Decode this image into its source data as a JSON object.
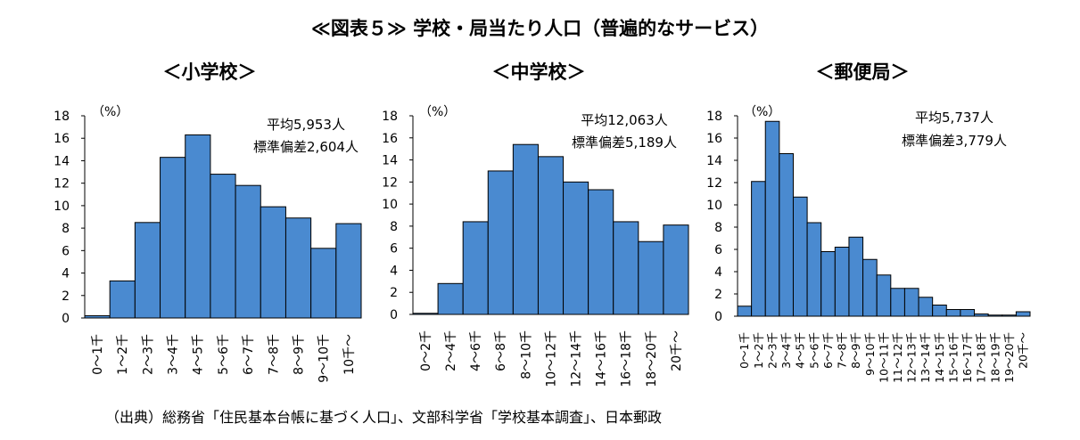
{
  "title": "≪図表５≫ 学校・局当たり人口（普遍的なサービス）",
  "source": "（出典）総務省「住民基本台帳に基づく人口」、文部科学省「学校基本調査」、日本郵政",
  "colors": {
    "bar": "#4a8ad0",
    "stroke": "#000000"
  },
  "chart_data": [
    {
      "type": "bar",
      "title": "＜小学校＞",
      "unit_label": "（%）",
      "annotations": [
        "平均5,953人",
        "標準偏差2,604人"
      ],
      "ylim": [
        0,
        18
      ],
      "yticks": [
        0,
        2,
        4,
        6,
        8,
        10,
        12,
        14,
        16,
        18
      ],
      "categories": [
        "0～1千",
        "1～2千",
        "2～3千",
        "3～4千",
        "4～5千",
        "5～6千",
        "6～7千",
        "7～8千",
        "8～9千",
        "9～10千",
        "10千～"
      ],
      "values": [
        0.2,
        3.3,
        8.5,
        14.3,
        16.3,
        12.8,
        11.8,
        9.9,
        8.9,
        6.2,
        8.4
      ]
    },
    {
      "type": "bar",
      "title": "＜中学校＞",
      "unit_label": "（%）",
      "annotations": [
        "平均12,063人",
        "標準偏差5,189人"
      ],
      "ylim": [
        0,
        18
      ],
      "yticks": [
        0,
        2,
        4,
        6,
        8,
        10,
        12,
        14,
        16,
        18
      ],
      "categories": [
        "0～2千",
        "2～4千",
        "4～6千",
        "6～8千",
        "8～10千",
        "10～12千",
        "12～14千",
        "14～16千",
        "16～18千",
        "18～20千",
        "20千～"
      ],
      "values": [
        0.1,
        2.8,
        8.4,
        13.0,
        15.4,
        14.3,
        12.0,
        11.3,
        8.4,
        6.6,
        8.1
      ]
    },
    {
      "type": "bar",
      "title": "＜郵便局＞",
      "unit_label": "（%）",
      "annotations": [
        "平均5,737人",
        "標準偏差3,779人"
      ],
      "ylim": [
        0,
        18
      ],
      "yticks": [
        0,
        2,
        4,
        6,
        8,
        10,
        12,
        14,
        16,
        18
      ],
      "categories": [
        "0～1千",
        "1～2千",
        "2～3千",
        "3～4千",
        "4～5千",
        "5～6千",
        "6～7千",
        "7～8千",
        "8～9千",
        "9～10千",
        "10～11千",
        "11～12千",
        "12～13千",
        "13～14千",
        "14～15千",
        "15～16千",
        "16～17千",
        "17～18千",
        "18～19千",
        "19～20千",
        "20千～"
      ],
      "values": [
        0.9,
        12.1,
        17.5,
        14.6,
        10.7,
        8.4,
        5.8,
        6.2,
        7.1,
        5.1,
        3.7,
        2.5,
        2.5,
        1.7,
        1.0,
        0.6,
        0.6,
        0.2,
        0.1,
        0.1,
        0.4
      ]
    }
  ]
}
